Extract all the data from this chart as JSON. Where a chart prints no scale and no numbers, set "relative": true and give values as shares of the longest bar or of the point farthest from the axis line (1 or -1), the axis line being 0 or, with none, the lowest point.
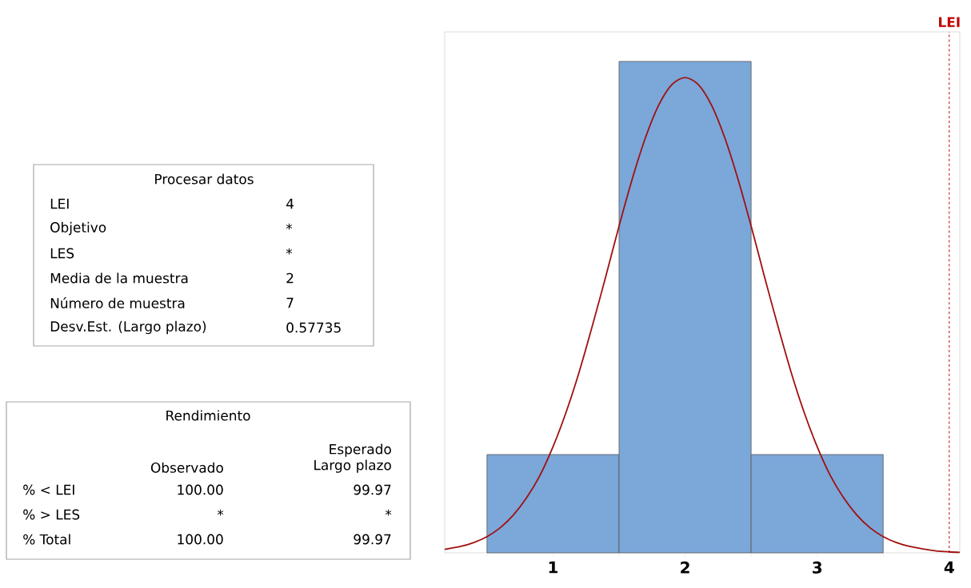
{
  "chart_data": [
    {
      "type": "other",
      "title": "Procesar datos",
      "y_categories": [
        "LEI",
        "Objetivo",
        "LES",
        "Media de la muestra",
        "Número de muestra",
        "Desv.Est. (Largo plazo)"
      ],
      "cell_labels": [
        [
          "4"
        ],
        [
          "*"
        ],
        [
          "*"
        ],
        [
          "2"
        ],
        [
          "7"
        ],
        [
          "0.57735"
        ]
      ]
    },
    {
      "type": "other",
      "title": "Rendimiento",
      "categories": [
        "Observado",
        "Esperado Largo plazo"
      ],
      "y_categories": [
        "% < LEI",
        "% > LES",
        "% Total"
      ],
      "cell_labels": [
        [
          "100.00",
          "99.97"
        ],
        [
          "*",
          "*"
        ],
        [
          "100.00",
          "99.97"
        ]
      ]
    },
    {
      "type": "histogram",
      "relative": true,
      "xlim": [
        0.18,
        4.08
      ],
      "xticks": [
        {
          "value": 0.5,
          "label": null
        },
        1,
        {
          "value": 1.5,
          "label": null
        },
        2,
        {
          "value": 2.5,
          "label": null
        },
        3,
        {
          "value": 3.5,
          "label": null
        },
        4
      ],
      "series": [
        {
          "type": "histogram",
          "color": "#7ba7d9",
          "bins": [
            0.5,
            1.5,
            2.5,
            3.5
          ],
          "values": [
            0.2,
            1,
            0.2
          ]
        },
        {
          "type": "line",
          "color": "#a01010",
          "x": [
            0.18,
            0.3,
            0.4,
            0.5,
            0.6,
            0.7,
            0.8,
            0.9,
            1.0,
            1.1,
            1.2,
            1.3,
            1.4,
            1.5,
            1.6,
            1.7,
            1.8,
            1.9,
            2.0,
            2.1,
            2.2,
            2.3,
            2.4,
            2.5,
            2.6,
            2.7,
            2.8,
            2.9,
            3.0,
            3.1,
            3.2,
            3.3,
            3.4,
            3.5,
            3.6,
            3.7,
            3.8,
            3.9,
            4.0,
            4.08
          ],
          "values": [
            0.007,
            0.013,
            0.021,
            0.033,
            0.051,
            0.077,
            0.112,
            0.157,
            0.216,
            0.287,
            0.37,
            0.464,
            0.563,
            0.665,
            0.761,
            0.845,
            0.911,
            0.953,
            0.967,
            0.953,
            0.911,
            0.845,
            0.761,
            0.665,
            0.563,
            0.464,
            0.37,
            0.287,
            0.216,
            0.157,
            0.112,
            0.077,
            0.051,
            0.033,
            0.021,
            0.013,
            0.008,
            0.004,
            0.002,
            0.001
          ]
        }
      ],
      "ref_lines": [
        {
          "axis": "x",
          "value": 4,
          "label": "LEI",
          "color": "#c00000",
          "line_style": "dashed"
        }
      ]
    }
  ]
}
